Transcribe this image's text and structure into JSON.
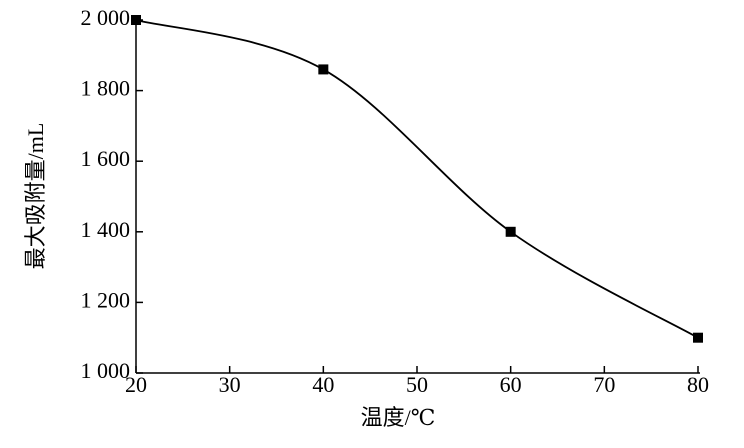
{
  "chart_data": {
    "type": "line",
    "x_label": "温度/℃",
    "y_label": "最大吸附量/mL",
    "x": [
      20,
      40,
      60,
      80
    ],
    "series": [
      {
        "color": "#000000",
        "values": [
          2000,
          1860,
          1400,
          1100
        ]
      }
    ],
    "xlim": [
      20,
      80
    ],
    "xticks": [
      20,
      30,
      40,
      50,
      60,
      70,
      80
    ],
    "ylim": [
      1000,
      2000
    ],
    "yticks": [
      {
        "value": 1000,
        "label": "1 000"
      },
      {
        "value": 1200,
        "label": "1 200"
      },
      {
        "value": 1400,
        "label": "1 400"
      },
      {
        "value": 1600,
        "label": "1 600"
      },
      {
        "value": 1800,
        "label": "1 800"
      },
      {
        "value": 2000,
        "label": "2 000"
      }
    ],
    "grid": false
  }
}
